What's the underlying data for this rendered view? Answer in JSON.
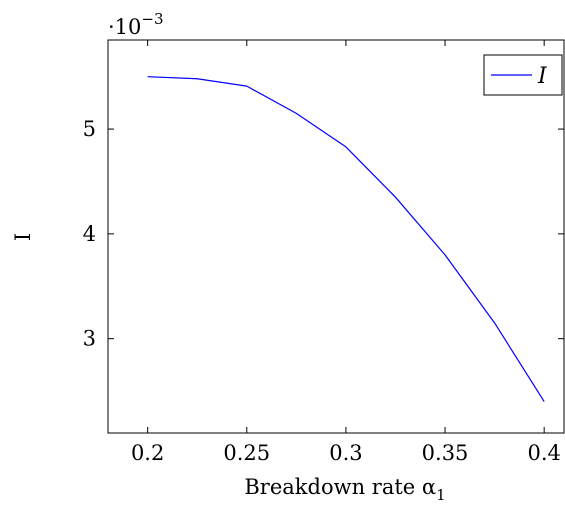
{
  "chart_data": {
    "type": "line",
    "xlabel": "Breakdown rate α",
    "xlabel_subscript": "1",
    "ylabel": "I",
    "y_multiplier": "·10",
    "y_multiplier_exponent": "−3",
    "xlim": [
      0.18,
      0.41
    ],
    "ylim": [
      2.1,
      5.85
    ],
    "x_ticks": [
      0.2,
      0.25,
      0.3,
      0.35,
      0.4
    ],
    "x_tick_labels": [
      "0.2",
      "0.25",
      "0.3",
      "0.35",
      "0.4"
    ],
    "y_ticks": [
      3,
      4,
      5
    ],
    "y_tick_labels": [
      "3",
      "4",
      "5"
    ],
    "grid": false,
    "legend_position": "top-right",
    "series": [
      {
        "name": "I",
        "color": "#0000ff",
        "x": [
          0.2,
          0.225,
          0.25,
          0.275,
          0.3,
          0.325,
          0.35,
          0.375,
          0.4
        ],
        "y": [
          5.5,
          5.48,
          5.41,
          5.15,
          4.83,
          4.35,
          3.8,
          3.15,
          2.4
        ]
      }
    ]
  }
}
